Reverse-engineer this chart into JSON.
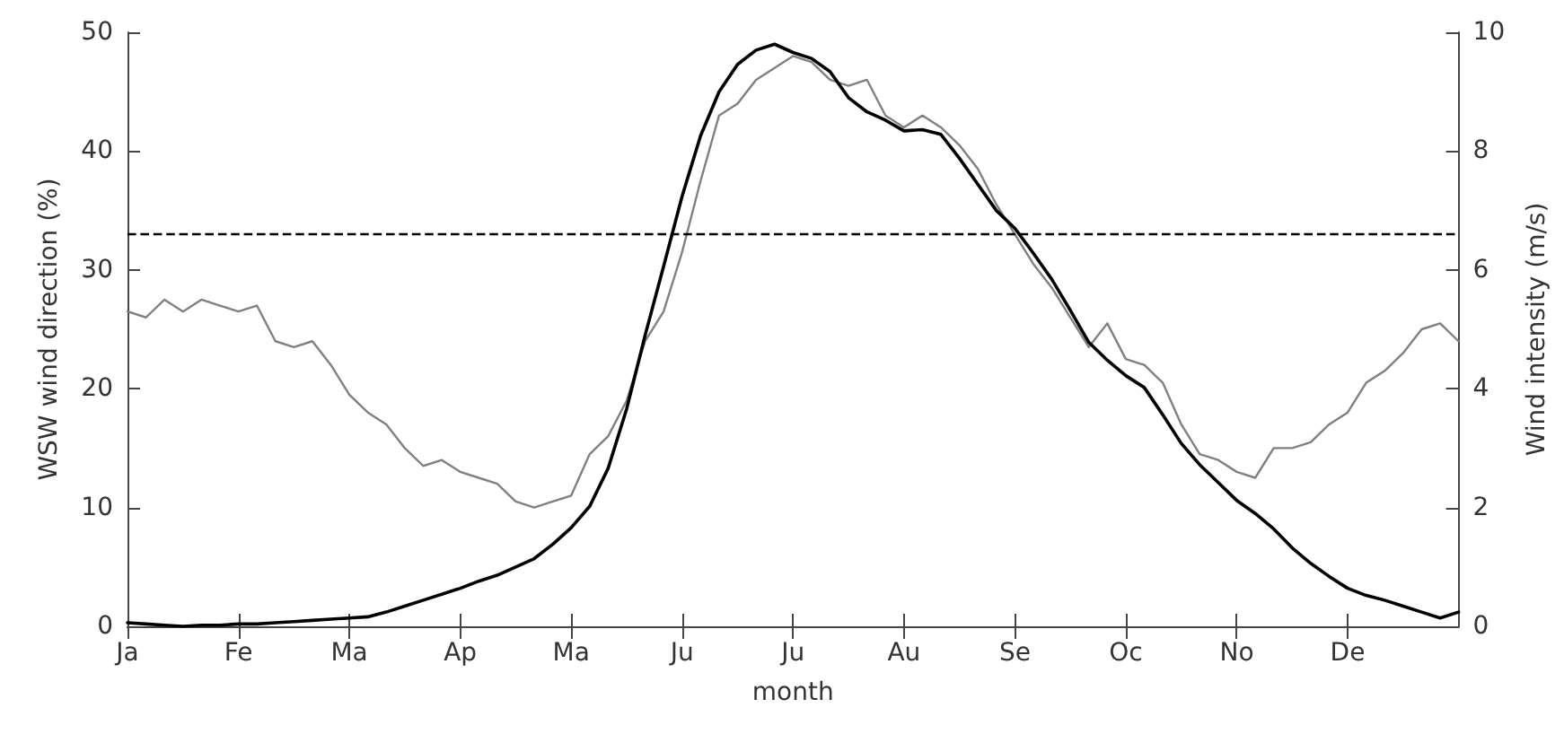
{
  "chart_data": {
    "type": "line",
    "xlabel": "month",
    "ylabel": "WSW wind direction (%)",
    "y2label": "Wind intensity (m/s)",
    "categories": [
      "Ja",
      null,
      null,
      null,
      null,
      null,
      "Fe",
      null,
      null,
      null,
      null,
      null,
      "Ma",
      null,
      null,
      null,
      null,
      null,
      "Ap",
      null,
      null,
      null,
      null,
      null,
      "Ma",
      null,
      null,
      null,
      null,
      null,
      "Ju",
      null,
      null,
      null,
      null,
      null,
      "Ju",
      null,
      null,
      null,
      null,
      null,
      "Au",
      null,
      null,
      null,
      null,
      null,
      "Se",
      null,
      null,
      null,
      null,
      null,
      "Oc",
      null,
      null,
      null,
      null,
      null,
      "No",
      null,
      null,
      null,
      null,
      null,
      "De",
      null,
      null,
      null,
      null,
      null,
      null
    ],
    "ylim": [
      0,
      50
    ],
    "yticks": [
      0,
      10,
      20,
      30,
      40,
      50
    ],
    "y2lim": [
      0,
      10
    ],
    "y2ticks": [
      0,
      2,
      4,
      6,
      8,
      10
    ],
    "grid": false,
    "marker": "none",
    "ref_lines": [
      {
        "axis": "y",
        "value": 33,
        "color": "#000000",
        "line_style": "dashed"
      }
    ],
    "series": [
      {
        "color": "#808080",
        "axis": "y2",
        "values": [
          5.3,
          5.2,
          5.5,
          5.3,
          5.5,
          5.4,
          5.3,
          5.4,
          4.8,
          4.7,
          4.8,
          4.4,
          3.9,
          3.6,
          3.4,
          3.0,
          2.7,
          2.8,
          2.6,
          2.5,
          2.4,
          2.1,
          2.0,
          2.1,
          2.2,
          2.9,
          3.2,
          3.8,
          4.8,
          5.3,
          6.3,
          7.5,
          8.6,
          8.8,
          9.2,
          9.4,
          9.6,
          9.5,
          9.2,
          9.1,
          9.2,
          8.6,
          8.4,
          8.6,
          8.4,
          8.1,
          7.7,
          7.1,
          6.6,
          6.1,
          5.7,
          5.2,
          4.7,
          5.1,
          4.5,
          4.4,
          4.1,
          3.4,
          2.9,
          2.8,
          2.6,
          2.5,
          3.0,
          3.0,
          3.1,
          3.4,
          3.6,
          4.1,
          4.3,
          4.6,
          5.0,
          5.1,
          4.8
        ]
      },
      {
        "color": "#000000",
        "axis": "y",
        "values": [
          0.3,
          0.2,
          0.1,
          0.0,
          0.1,
          0.1,
          0.2,
          0.2,
          0.3,
          0.4,
          0.5,
          0.6,
          0.7,
          0.8,
          1.2,
          1.7,
          2.2,
          2.7,
          3.2,
          3.8,
          4.3,
          5.0,
          5.7,
          6.9,
          8.3,
          10.1,
          13.3,
          18.3,
          24.5,
          30.3,
          36.2,
          41.3,
          45.0,
          47.3,
          48.5,
          49.0,
          48.3,
          47.8,
          46.7,
          44.5,
          43.3,
          42.6,
          41.7,
          41.8,
          41.4,
          39.4,
          37.2,
          35.0,
          33.5,
          31.4,
          29.2,
          26.6,
          23.9,
          22.4,
          21.1,
          20.1,
          17.8,
          15.4,
          13.6,
          12.1,
          10.6,
          9.5,
          8.2,
          6.6,
          5.3,
          4.2,
          3.2,
          2.6,
          2.2,
          1.7,
          1.2,
          0.7,
          1.2
        ]
      }
    ]
  }
}
